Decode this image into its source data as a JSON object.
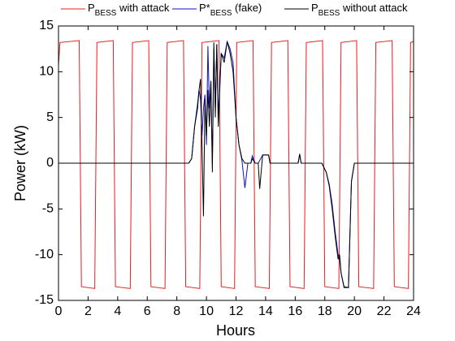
{
  "chart_data": {
    "type": "line",
    "xlabel": "Hours",
    "ylabel": "Power (kW)",
    "xlim": [
      0,
      24
    ],
    "xticks": [
      0,
      2,
      4,
      6,
      8,
      10,
      12,
      14,
      16,
      18,
      20,
      22,
      24
    ],
    "ylim": [
      -15,
      15
    ],
    "yticks": [
      -15,
      -10,
      -5,
      0,
      5,
      10,
      15
    ],
    "grid": false,
    "legend": "top",
    "series": [
      {
        "name": [
          "P",
          "BESS",
          " with attack"
        ],
        "color": "#e02020",
        "x": [
          0,
          0.1,
          1.4,
          1.55,
          2.45,
          2.6,
          3.7,
          3.85,
          4.85,
          5.0,
          6.1,
          6.25,
          7.2,
          7.35,
          8.45,
          8.6,
          9.55,
          9.7,
          10.85,
          11.0,
          11.9,
          12.05,
          13.15,
          13.3,
          14.25,
          14.4,
          15.5,
          15.65,
          16.6,
          16.75,
          17.85,
          18.0,
          18.95,
          19.1,
          20.15,
          20.3,
          21.3,
          21.45,
          22.55,
          22.7,
          23.65,
          23.8,
          24
        ],
        "values": [
          10.7,
          13.2,
          13.4,
          -13.5,
          -13.7,
          13.2,
          13.4,
          -13.5,
          -13.7,
          13.2,
          13.4,
          -13.5,
          -13.7,
          13.2,
          13.4,
          -13.5,
          -13.7,
          13.2,
          13.4,
          -13.5,
          -13.7,
          13.2,
          13.4,
          -13.5,
          -13.7,
          13.2,
          13.4,
          -13.5,
          -13.7,
          13.2,
          13.4,
          -13.5,
          -13.7,
          13.2,
          13.4,
          -13.5,
          -13.7,
          13.2,
          13.4,
          -13.5,
          -13.7,
          13.2,
          13.3
        ]
      },
      {
        "name": [
          "P*",
          "BESS",
          " (fake)"
        ],
        "color": "#1010c0",
        "x": [
          0,
          8.8,
          9.0,
          9.2,
          9.4,
          9.5,
          9.6,
          9.7,
          9.8,
          9.9,
          10.0,
          10.1,
          10.2,
          10.3,
          10.4,
          10.5,
          10.6,
          10.7,
          10.8,
          11.0,
          11.2,
          11.4,
          11.6,
          11.8,
          12.0,
          12.2,
          12.4,
          12.6,
          12.8,
          13.0,
          13.1,
          13.3,
          13.5,
          13.8,
          14.2,
          14.3,
          16.2,
          16.3,
          16.4,
          17.8,
          18.1,
          18.3,
          18.5,
          18.7,
          18.9,
          19.0,
          19.1,
          19.3,
          19.6,
          19.8,
          20.0,
          24
        ],
        "values": [
          0,
          0,
          0.5,
          4,
          6.5,
          8,
          7,
          3,
          6,
          7.5,
          2,
          12.8,
          6,
          9,
          0,
          12.5,
          6,
          13,
          5,
          12,
          11.5,
          13.3,
          12.5,
          11,
          5,
          2,
          0.3,
          -2.7,
          0,
          0,
          0.8,
          0,
          0,
          0.9,
          0.9,
          0,
          0,
          1,
          0,
          0,
          -1,
          -2.3,
          -4.5,
          -7.5,
          -10,
          -10.5,
          -12,
          -13.6,
          -13.6,
          -2,
          0,
          0
        ]
      },
      {
        "name": [
          "P",
          "BESS",
          " without attack"
        ],
        "color": "#000000",
        "x": [
          0,
          8.8,
          9.0,
          9.2,
          9.4,
          9.5,
          9.6,
          9.7,
          9.8,
          9.9,
          10.0,
          10.1,
          10.2,
          10.3,
          10.4,
          10.5,
          10.6,
          10.7,
          10.8,
          11.0,
          11.2,
          11.4,
          11.6,
          11.8,
          12.0,
          12.2,
          12.4,
          12.6,
          13.0,
          13.1,
          13.3,
          13.5,
          13.6,
          13.8,
          14.2,
          14.3,
          16.2,
          16.3,
          16.4,
          17.8,
          18.1,
          18.3,
          18.5,
          18.7,
          18.9,
          19.0,
          19.1,
          19.3,
          19.6,
          19.8,
          20.0,
          24
        ],
        "values": [
          0,
          0,
          0.5,
          4,
          6,
          8,
          9.2,
          2,
          -5.8,
          7,
          3,
          8,
          4,
          9,
          -1,
          13.2,
          5,
          13,
          4,
          12,
          11,
          13.3,
          12,
          10,
          5,
          2,
          0.5,
          0,
          0,
          0.5,
          0,
          0,
          -2.8,
          0.9,
          0.9,
          0,
          0,
          1,
          0,
          0,
          -1,
          -2.5,
          -5,
          -8,
          -10.5,
          -10,
          -12,
          -13.5,
          -13.6,
          -2,
          0,
          0
        ]
      }
    ]
  }
}
